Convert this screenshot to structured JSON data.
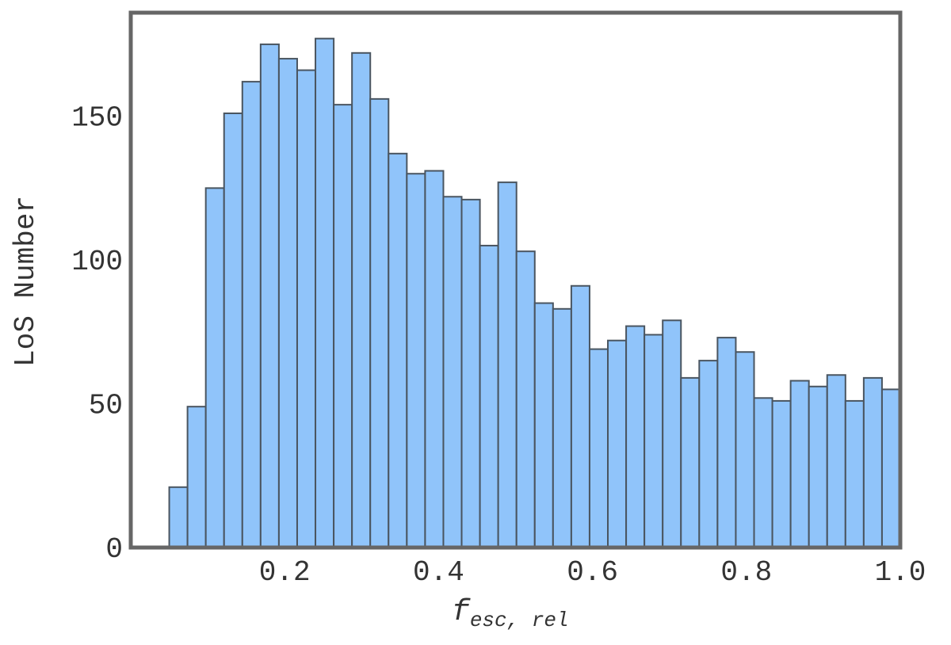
{
  "chart_data": {
    "type": "histogram",
    "ylabel": "LoS Number",
    "xlabel": "f",
    "xlabel_sub": "esc, rel",
    "bins": [
      0.05,
      0.07375,
      0.0975,
      0.12125,
      0.145,
      0.16875,
      0.1925,
      0.21625,
      0.24,
      0.26375,
      0.2875,
      0.31125,
      0.335,
      0.35875,
      0.3825,
      0.40625,
      0.43,
      0.45375,
      0.4775,
      0.50125,
      0.525,
      0.54875,
      0.5725,
      0.59625,
      0.62,
      0.64375,
      0.6675,
      0.69125,
      0.715,
      0.73875,
      0.7625,
      0.78625,
      0.81,
      0.83375,
      0.8575,
      0.88125,
      0.905,
      0.92875,
      0.9525,
      0.97625,
      1.0
    ],
    "values": [
      21,
      49,
      125,
      151,
      162,
      175,
      170,
      166,
      177,
      154,
      172,
      156,
      137,
      130,
      131,
      122,
      121,
      105,
      127,
      103,
      85,
      83,
      91,
      69,
      72,
      77,
      74,
      79,
      59,
      65,
      73,
      68,
      52,
      51,
      58,
      56,
      60,
      51,
      59,
      55
    ],
    "color": "#90c4fa",
    "edgecolor": "#4a5560",
    "xlim": [
      0,
      1.0
    ],
    "ylim": [
      0,
      186
    ],
    "xticks": [
      0.2,
      0.4,
      0.6,
      0.8,
      {
        "value": 1.0,
        "label": "1.0"
      }
    ],
    "yticks": [
      0,
      50,
      100,
      150
    ],
    "grid": false
  }
}
